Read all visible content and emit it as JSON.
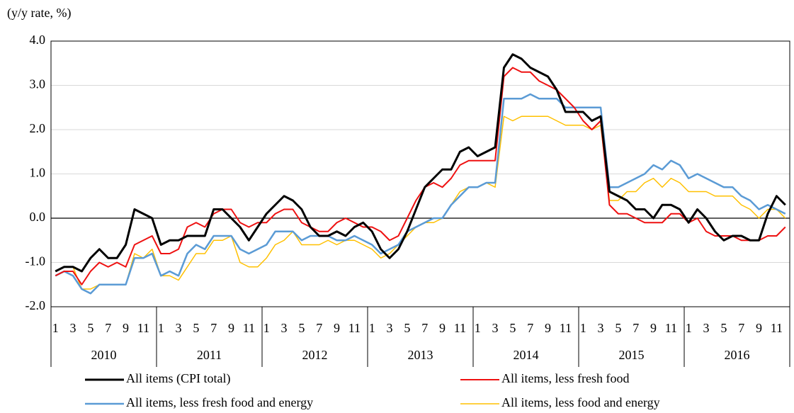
{
  "chart_data": {
    "type": "line",
    "y_axis_label": "(y/y rate, %)",
    "categories": [
      "1",
      null,
      "3",
      null,
      "5",
      null,
      "7",
      null,
      "9",
      null,
      "11",
      null,
      "1",
      null,
      "3",
      null,
      "5",
      null,
      "7",
      null,
      "9",
      null,
      "11",
      null,
      "1",
      null,
      "3",
      null,
      "5",
      null,
      "7",
      null,
      "9",
      null,
      "11",
      null,
      "1",
      null,
      "3",
      null,
      "5",
      null,
      "7",
      null,
      "9",
      null,
      "11",
      null,
      "1",
      null,
      "3",
      null,
      "5",
      null,
      "7",
      null,
      "9",
      null,
      "11",
      null,
      "1",
      null,
      "3",
      null,
      "5",
      null,
      "7",
      null,
      "9",
      null,
      "11",
      null,
      "1",
      null,
      "3",
      null,
      "5",
      null,
      "7",
      null,
      "9",
      null,
      "11",
      null
    ],
    "year_groups": [
      "2010",
      "2011",
      "2012",
      "2013",
      "2014",
      "2015",
      "2016"
    ],
    "ylim": [
      -2,
      4
    ],
    "yticks": [
      {
        "value": -2,
        "label": "-2.0"
      },
      {
        "value": -1,
        "label": "-1.0"
      },
      {
        "value": 0,
        "label": "0.0"
      },
      {
        "value": 1,
        "label": "1.0"
      },
      {
        "value": 2,
        "label": "2.0"
      },
      {
        "value": 3,
        "label": "3.0"
      },
      {
        "value": 4,
        "label": "4.0"
      }
    ],
    "grid": true,
    "series": [
      {
        "name": "All items (CPI total)",
        "color": "#000000",
        "values": [
          -1.2,
          -1.1,
          -1.1,
          -1.2,
          -0.9,
          -0.7,
          -0.9,
          -0.9,
          -0.6,
          0.2,
          0.1,
          0.0,
          -0.6,
          -0.5,
          -0.5,
          -0.4,
          -0.4,
          -0.4,
          0.2,
          0.2,
          0.0,
          -0.2,
          -0.5,
          -0.2,
          0.1,
          0.3,
          0.5,
          0.4,
          0.2,
          -0.2,
          -0.4,
          -0.4,
          -0.3,
          -0.4,
          -0.2,
          -0.1,
          -0.3,
          -0.7,
          -0.9,
          -0.7,
          -0.3,
          0.2,
          0.7,
          0.9,
          1.1,
          1.1,
          1.5,
          1.6,
          1.4,
          1.5,
          1.6,
          3.4,
          3.7,
          3.6,
          3.4,
          3.3,
          3.2,
          2.9,
          2.4,
          2.4,
          2.4,
          2.2,
          2.3,
          0.6,
          0.5,
          0.4,
          0.2,
          0.2,
          0.0,
          0.3,
          0.3,
          0.2,
          -0.1,
          0.2,
          0.0,
          -0.3,
          -0.5,
          -0.4,
          -0.4,
          -0.5,
          -0.5,
          0.1,
          0.5,
          0.3
        ]
      },
      {
        "name": "All items, less fresh food",
        "color": "#ee1111",
        "values": [
          -1.3,
          -1.2,
          -1.2,
          -1.5,
          -1.2,
          -1.0,
          -1.1,
          -1.0,
          -1.1,
          -0.6,
          -0.5,
          -0.4,
          -0.8,
          -0.8,
          -0.7,
          -0.2,
          -0.1,
          -0.2,
          0.1,
          0.2,
          0.2,
          -0.1,
          -0.2,
          -0.1,
          -0.1,
          0.1,
          0.2,
          0.2,
          -0.1,
          -0.2,
          -0.3,
          -0.3,
          -0.1,
          0.0,
          -0.1,
          -0.2,
          -0.2,
          -0.3,
          -0.5,
          -0.4,
          0.0,
          0.4,
          0.7,
          0.8,
          0.7,
          0.9,
          1.2,
          1.3,
          1.3,
          1.3,
          1.3,
          3.2,
          3.4,
          3.3,
          3.3,
          3.1,
          3.0,
          2.9,
          2.7,
          2.5,
          2.2,
          2.0,
          2.2,
          0.3,
          0.1,
          0.1,
          0.0,
          -0.1,
          -0.1,
          -0.1,
          0.1,
          0.1,
          -0.1,
          0.0,
          -0.3,
          -0.4,
          -0.4,
          -0.4,
          -0.5,
          -0.5,
          -0.5,
          -0.4,
          -0.4,
          -0.2
        ]
      },
      {
        "name": "All items, less fresh food and energy",
        "color": "#5b9bd5",
        "values": [
          -1.3,
          -1.2,
          -1.3,
          -1.6,
          -1.7,
          -1.5,
          -1.5,
          -1.5,
          -1.5,
          -0.9,
          -0.9,
          -0.8,
          -1.3,
          -1.2,
          -1.3,
          -0.8,
          -0.6,
          -0.7,
          -0.4,
          -0.4,
          -0.4,
          -0.7,
          -0.8,
          -0.7,
          -0.6,
          -0.3,
          -0.3,
          -0.3,
          -0.5,
          -0.4,
          -0.4,
          -0.4,
          -0.5,
          -0.5,
          -0.4,
          -0.5,
          -0.6,
          -0.8,
          -0.7,
          -0.6,
          -0.3,
          -0.2,
          -0.1,
          0.0,
          0.0,
          0.3,
          0.5,
          0.7,
          0.7,
          0.8,
          0.8,
          2.7,
          2.7,
          2.7,
          2.8,
          2.7,
          2.7,
          2.7,
          2.5,
          2.5,
          2.5,
          2.5,
          2.5,
          0.7,
          0.7,
          0.8,
          0.9,
          1.0,
          1.2,
          1.1,
          1.3,
          1.2,
          0.9,
          1.0,
          0.9,
          0.8,
          0.7,
          0.7,
          0.5,
          0.4,
          0.2,
          0.3,
          0.2,
          0.1
        ]
      },
      {
        "name": "All items, less food and energy",
        "color": "#ffc000",
        "values": [
          -1.2,
          -1.1,
          -1.1,
          -1.6,
          -1.6,
          -1.5,
          -1.5,
          -1.5,
          -1.5,
          -0.8,
          -0.9,
          -0.7,
          -1.3,
          -1.3,
          -1.4,
          -1.1,
          -0.8,
          -0.8,
          -0.5,
          -0.5,
          -0.4,
          -1.0,
          -1.1,
          -1.1,
          -0.9,
          -0.6,
          -0.5,
          -0.3,
          -0.6,
          -0.6,
          -0.6,
          -0.5,
          -0.6,
          -0.5,
          -0.5,
          -0.6,
          -0.7,
          -0.9,
          -0.8,
          -0.6,
          -0.4,
          -0.2,
          -0.1,
          -0.1,
          0.0,
          0.3,
          0.6,
          0.7,
          0.7,
          0.8,
          0.7,
          2.3,
          2.2,
          2.3,
          2.3,
          2.3,
          2.3,
          2.2,
          2.1,
          2.1,
          2.1,
          2.0,
          2.1,
          0.4,
          0.4,
          0.6,
          0.6,
          0.8,
          0.9,
          0.7,
          0.9,
          0.8,
          0.6,
          0.6,
          0.6,
          0.5,
          0.5,
          0.5,
          0.3,
          0.2,
          0.0,
          0.2,
          0.2,
          0.0
        ]
      }
    ]
  }
}
